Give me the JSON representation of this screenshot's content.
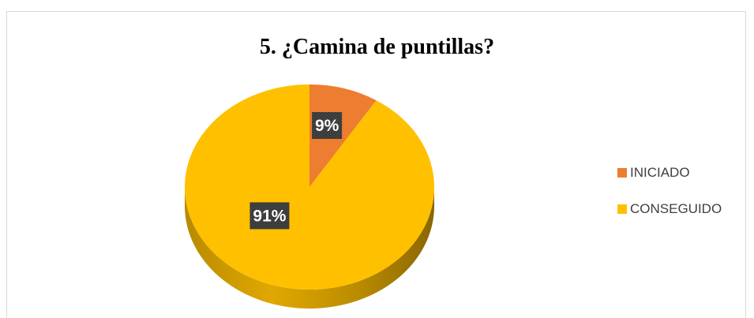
{
  "chart_data": {
    "type": "pie",
    "title": "5. ¿Camina de puntillas?",
    "slices": [
      {
        "label": "INICIADO",
        "value": 9,
        "display": "9%",
        "color": "#ed7d31"
      },
      {
        "label": "CONSEGUIDO",
        "value": 91,
        "display": "91%",
        "color": "#ffc000"
      }
    ],
    "legend_position": "right",
    "style": "3d"
  }
}
